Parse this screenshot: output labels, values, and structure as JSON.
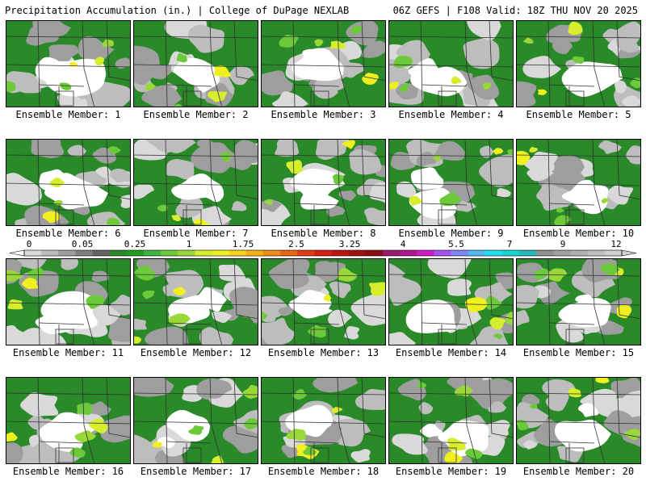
{
  "header": {
    "left_title": "Precipitation Accumulation (in.) | College of DuPage NEXLAB",
    "right_title": "06Z GEFS | F108 Valid: 18Z THU NOV 20 2025"
  },
  "colorbar": {
    "tick_labels": [
      "0",
      "0.05",
      "0.25",
      "1",
      "1.75",
      "2.5",
      "3.25",
      "4",
      "5.5",
      "7",
      "9",
      "12"
    ],
    "colors": [
      "#d9d9d9",
      "#bdbdbd",
      "#9e9e9e",
      "#7f7f7f",
      "#636363",
      "#2a8a2a",
      "#1f9e1f",
      "#3fb53f",
      "#6cc93a",
      "#9ad83a",
      "#d7ee2f",
      "#f0f020",
      "#f8d41e",
      "#f6b01b",
      "#f18b18",
      "#ec6516",
      "#e53b14",
      "#d81d13",
      "#bf1313",
      "#a31011",
      "#8a0d12",
      "#9a1a6f",
      "#b21591",
      "#cc1bc0",
      "#a552f0",
      "#7f86f5",
      "#4fb9f5",
      "#1fe0f0",
      "#1ad4d4",
      "#2ab8b8",
      "#909090",
      "#a0a0a0",
      "#b0b0b0",
      "#c0c0c0",
      "#d0d0d0"
    ]
  },
  "members": [
    {
      "label": "Ensemble Member: 1"
    },
    {
      "label": "Ensemble Member: 2"
    },
    {
      "label": "Ensemble Member: 3"
    },
    {
      "label": "Ensemble Member: 4"
    },
    {
      "label": "Ensemble Member: 5"
    },
    {
      "label": "Ensemble Member: 6"
    },
    {
      "label": "Ensemble Member: 7"
    },
    {
      "label": "Ensemble Member: 8"
    },
    {
      "label": "Ensemble Member: 9"
    },
    {
      "label": "Ensemble Member: 10"
    },
    {
      "label": "Ensemble Member: 11"
    },
    {
      "label": "Ensemble Member: 12"
    },
    {
      "label": "Ensemble Member: 13"
    },
    {
      "label": "Ensemble Member: 14"
    },
    {
      "label": "Ensemble Member: 15"
    },
    {
      "label": "Ensemble Member: 16"
    },
    {
      "label": "Ensemble Member: 17"
    },
    {
      "label": "Ensemble Member: 18"
    },
    {
      "label": "Ensemble Member: 19"
    },
    {
      "label": "Ensemble Member: 20"
    }
  ]
}
